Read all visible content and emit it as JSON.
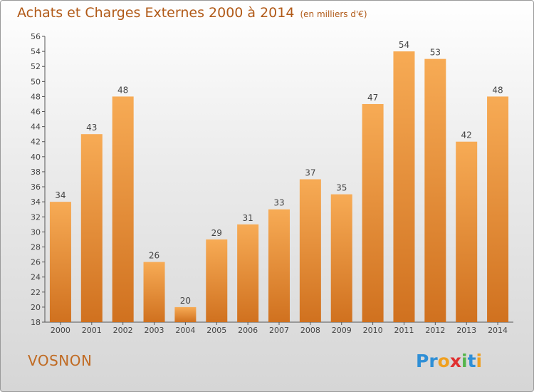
{
  "header": {
    "title": "Achats et Charges Externes 2000 à 2014",
    "unit": "(en milliers d'€)"
  },
  "footer": {
    "commune": "VOSNON"
  },
  "logo": {
    "letters": [
      "P",
      "r",
      "o",
      "x",
      "i",
      "t",
      "i"
    ],
    "colors": [
      "#2f8fd6",
      "#2f8fd6",
      "#f0a020",
      "#e03030",
      "#54b54a",
      "#2f8fd6",
      "#f0a020"
    ]
  },
  "colors": {
    "bar_light": "#f7ab55",
    "bar_dark": "#d0711f",
    "text": "#444444",
    "accent": "#b15a18"
  },
  "chart_data": {
    "type": "bar",
    "categories": [
      "2000",
      "2001",
      "2002",
      "2003",
      "2004",
      "2005",
      "2006",
      "2007",
      "2008",
      "2009",
      "2010",
      "2011",
      "2012",
      "2013",
      "2014"
    ],
    "values": [
      34,
      43,
      48,
      26,
      20,
      29,
      31,
      33,
      37,
      35,
      47,
      54,
      53,
      42,
      48
    ],
    "title": "Achats et Charges Externes 2000 à 2014",
    "xlabel": "",
    "ylabel": "",
    "ylim": [
      18,
      56
    ],
    "yticks": [
      18,
      20,
      22,
      24,
      26,
      28,
      30,
      32,
      34,
      36,
      38,
      40,
      42,
      44,
      46,
      48,
      50,
      52,
      54,
      56
    ],
    "grid": false,
    "data_labels": true
  }
}
